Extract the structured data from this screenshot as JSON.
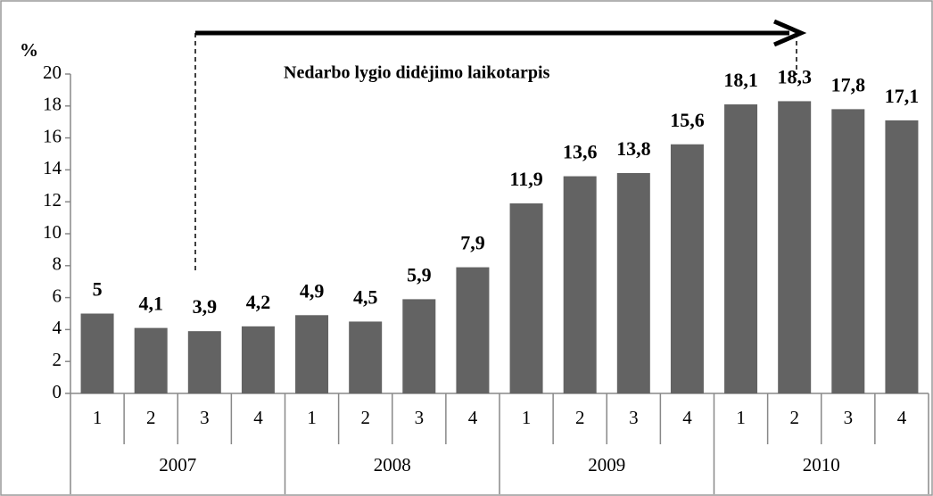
{
  "chart_data": {
    "type": "bar",
    "y_axis_label": "%",
    "annotation": "Nedarbo lygio didėjimo laikotarpis",
    "categories": [
      "1",
      "2",
      "3",
      "4",
      "1",
      "2",
      "3",
      "4",
      "1",
      "2",
      "3",
      "4",
      "1",
      "2",
      "3",
      "4"
    ],
    "groups": [
      "2007",
      "2008",
      "2009",
      "2010"
    ],
    "values": [
      5,
      4.1,
      3.9,
      4.2,
      4.9,
      4.5,
      5.9,
      7.9,
      11.9,
      13.6,
      13.8,
      15.6,
      18.1,
      18.3,
      17.8,
      17.1
    ],
    "value_labels": [
      "5",
      "4,1",
      "3,9",
      "4,2",
      "4,9",
      "4,5",
      "5,9",
      "7,9",
      "11,9",
      "13,6",
      "13,8",
      "15,6",
      "18,1",
      "18,3",
      "17,8",
      "17,1"
    ],
    "color": "#636363",
    "ylim": [
      0,
      20
    ],
    "yticks": [
      0,
      2,
      4,
      6,
      8,
      10,
      12,
      14,
      16,
      18,
      20
    ],
    "grid": false
  }
}
